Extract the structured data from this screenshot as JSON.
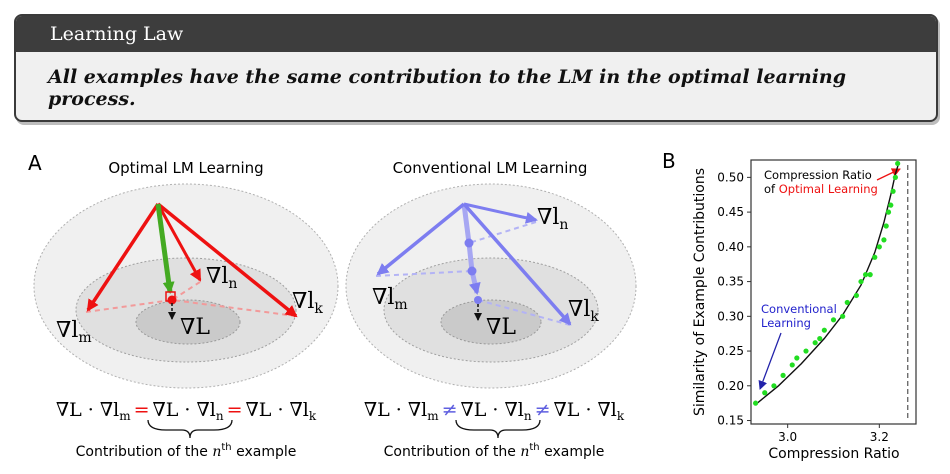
{
  "law": {
    "title": "Learning Law",
    "statement": "All examples have the same contribution to the LM in the optimal learning process."
  },
  "panel_a": {
    "label": "A",
    "optimal": {
      "title": "Optimal LM Learning",
      "grad_m": "∇l",
      "grad_m_sub": "m",
      "grad_n": "∇l",
      "grad_n_sub": "n",
      "grad_k": "∇l",
      "grad_k_sub": "k",
      "grad_L": "∇L",
      "eq_left": "∇L · ∇l",
      "eq_left_sub": "m",
      "eq_op1": "=",
      "eq_mid": "∇L · ∇l",
      "eq_mid_sub": "n",
      "eq_op2": "=",
      "eq_right": "∇L · ∇l",
      "eq_right_sub": "k",
      "caption_pre": "Contribution of the ",
      "caption_var": "n",
      "caption_sup": "th",
      "caption_post": " example"
    },
    "conventional": {
      "title": "Conventional LM Learning",
      "grad_m": "∇l",
      "grad_m_sub": "m",
      "grad_n": "∇l",
      "grad_n_sub": "n",
      "grad_k": "∇l",
      "grad_k_sub": "k",
      "grad_L": "∇L",
      "eq_left": "∇L · ∇l",
      "eq_left_sub": "m",
      "eq_op1": "≠",
      "eq_mid": "∇L · ∇l",
      "eq_mid_sub": "n",
      "eq_op2": "≠",
      "eq_right": "∇L · ∇l",
      "eq_right_sub": "k",
      "caption_pre": "Contribution of the ",
      "caption_var": "n",
      "caption_sup": "th",
      "caption_post": " example"
    }
  },
  "colors": {
    "optimal_arrow": "#ee1111",
    "optimal_main": "#44aa22",
    "conventional_arrow": "#7d7df0",
    "scatter": "#22dd22",
    "fit_line": "#111111"
  },
  "chart_data": {
    "type": "scatter",
    "panel_label": "B",
    "xlabel": "Compression Ratio",
    "ylabel": "Similarity of Example Contributions",
    "xlim": [
      2.92,
      3.28
    ],
    "ylim": [
      0.145,
      0.525
    ],
    "xticks": [
      "3.0",
      "3.2"
    ],
    "yticks": [
      "0.15",
      "0.20",
      "0.25",
      "0.30",
      "0.35",
      "0.40",
      "0.45",
      "0.50"
    ],
    "x": [
      2.93,
      2.95,
      2.97,
      2.99,
      3.01,
      3.02,
      3.04,
      3.06,
      3.07,
      3.08,
      3.1,
      3.12,
      3.13,
      3.15,
      3.16,
      3.17,
      3.18,
      3.19,
      3.2,
      3.21,
      3.215,
      3.22,
      3.225,
      3.23,
      3.235,
      3.24
    ],
    "y": [
      0.175,
      0.19,
      0.2,
      0.215,
      0.23,
      0.24,
      0.25,
      0.262,
      0.268,
      0.28,
      0.295,
      0.3,
      0.32,
      0.33,
      0.35,
      0.36,
      0.36,
      0.385,
      0.4,
      0.41,
      0.43,
      0.45,
      0.46,
      0.48,
      0.5,
      0.52
    ],
    "fit": [
      [
        2.93,
        0.173
      ],
      [
        2.98,
        0.2
      ],
      [
        3.03,
        0.232
      ],
      [
        3.08,
        0.268
      ],
      [
        3.12,
        0.302
      ],
      [
        3.16,
        0.345
      ],
      [
        3.19,
        0.392
      ],
      [
        3.21,
        0.435
      ],
      [
        3.225,
        0.475
      ],
      [
        3.235,
        0.505
      ],
      [
        3.242,
        0.52
      ]
    ],
    "grid": false,
    "annotations": {
      "optimal_line1": "Compression Ratio",
      "optimal_line2_pre": "of ",
      "optimal_line2_hi": "Optimal Learning",
      "conventional_line1": "Conventional",
      "conventional_line2": "Learning"
    }
  }
}
